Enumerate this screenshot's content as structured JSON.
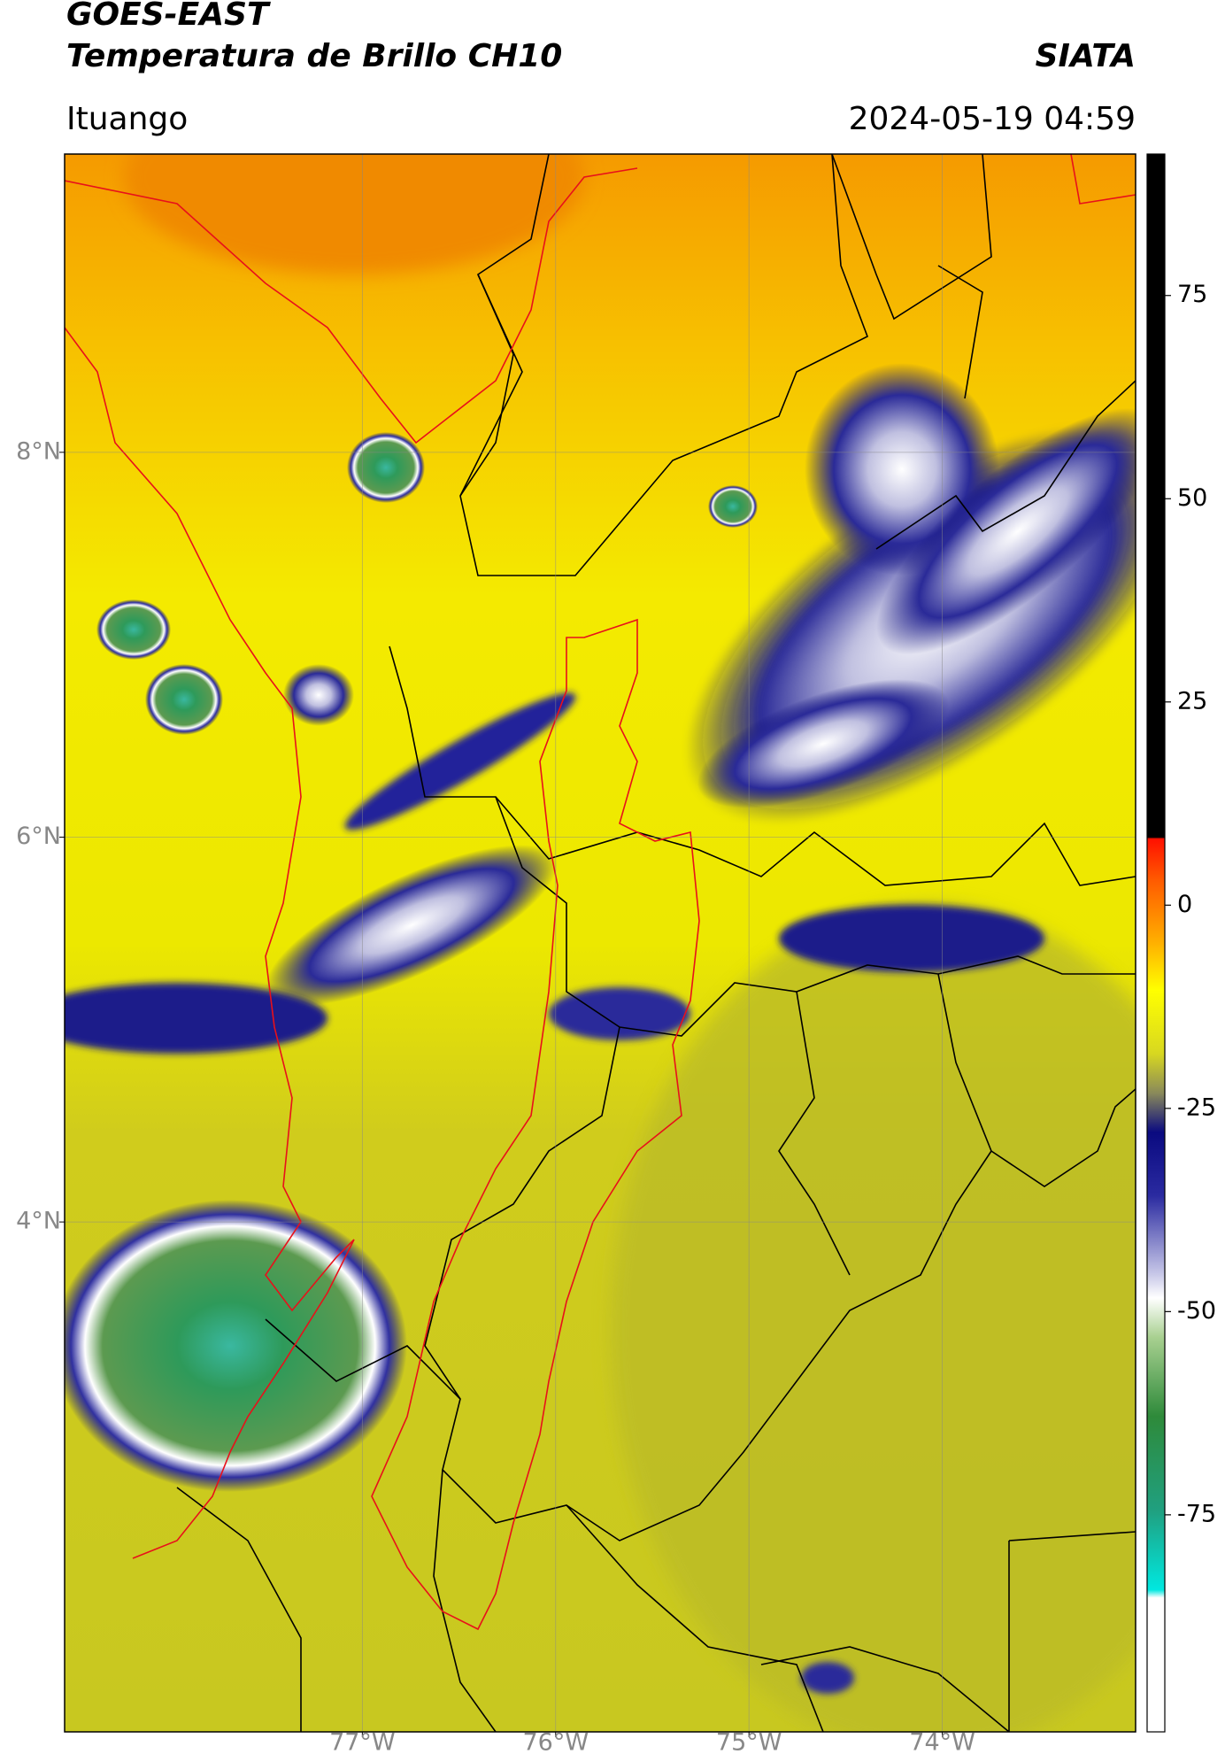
{
  "header": {
    "title": "GOES-EAST",
    "subtitle": "Temperatura de Brillo CH10",
    "source": "SIATA",
    "location": "Ituango",
    "datetime": "2024-05-19 04:59"
  },
  "map": {
    "xlim": [
      -78.54,
      -73.0
    ],
    "ylim": [
      1.35,
      9.55
    ],
    "xticks": [
      {
        "value": -77,
        "label": "77°W"
      },
      {
        "value": -76,
        "label": "76°W"
      },
      {
        "value": -75,
        "label": "75°W"
      },
      {
        "value": -74,
        "label": "74°W"
      }
    ],
    "yticks": [
      {
        "value": 8,
        "label": "8°N"
      },
      {
        "value": 6,
        "label": "6°N"
      },
      {
        "value": 4,
        "label": "4°N"
      }
    ],
    "grid": true
  },
  "colorbar": {
    "lim": [
      -101.7,
      92.4
    ],
    "ticks": [
      75,
      50,
      25,
      0,
      -25,
      -50,
      -75
    ]
  }
}
